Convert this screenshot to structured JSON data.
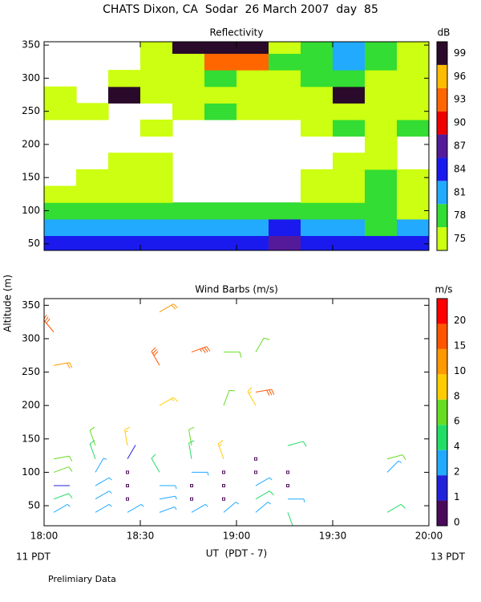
{
  "page": {
    "title": "CHATS Dixon, CA  Sodar  26 March 2007  day  85",
    "ylabel": "Altitude (m)",
    "xlabel": "UT  (PDT - 7)",
    "left_note": "11 PDT",
    "right_note": "13 PDT",
    "footnote": "Prelimiary Data"
  },
  "chart_data": [
    {
      "type": "heatmap",
      "title": "Reflectivity",
      "x": [
        5,
        15,
        25,
        35,
        45,
        55,
        65,
        75,
        85,
        95,
        105,
        115
      ],
      "y": [
        50,
        75,
        100,
        125,
        150,
        175,
        200,
        225,
        250,
        275,
        300,
        325,
        350
      ],
      "z": [
        [
          84,
          84,
          84,
          84,
          84,
          84,
          84,
          87,
          84,
          84,
          84,
          84
        ],
        [
          81,
          81,
          81,
          81,
          81,
          81,
          81,
          84,
          81,
          81,
          78,
          81
        ],
        [
          78,
          78,
          78,
          78,
          78,
          78,
          78,
          78,
          78,
          78,
          78,
          75
        ],
        [
          75,
          75,
          75,
          75,
          null,
          null,
          null,
          null,
          75,
          75,
          78,
          75
        ],
        [
          null,
          75,
          75,
          75,
          null,
          null,
          null,
          null,
          75,
          75,
          78,
          75
        ],
        [
          null,
          null,
          75,
          75,
          null,
          null,
          null,
          null,
          null,
          75,
          75,
          null
        ],
        [
          null,
          null,
          null,
          null,
          null,
          null,
          null,
          null,
          null,
          null,
          75,
          null
        ],
        [
          null,
          null,
          null,
          75,
          null,
          null,
          null,
          null,
          75,
          78,
          75,
          78
        ],
        [
          75,
          75,
          null,
          null,
          75,
          78,
          75,
          75,
          75,
          75,
          75,
          75
        ],
        [
          75,
          null,
          99,
          75,
          75,
          75,
          75,
          75,
          75,
          99,
          75,
          75
        ],
        [
          null,
          null,
          75,
          75,
          75,
          78,
          75,
          75,
          78,
          78,
          75,
          75
        ],
        [
          null,
          null,
          null,
          75,
          75,
          93,
          93,
          78,
          78,
          81,
          78,
          75
        ],
        [
          null,
          null,
          null,
          75,
          99,
          99,
          99,
          75,
          78,
          81,
          78,
          75
        ]
      ],
      "xlim": [
        0,
        120
      ],
      "ylim": [
        40,
        355
      ],
      "xticks": [
        0,
        30,
        60,
        90,
        120
      ],
      "yticks": [
        50,
        100,
        150,
        200,
        250,
        300,
        350
      ],
      "colorbar": {
        "label": "dB",
        "label_position": "center",
        "levels": [
          75,
          78,
          81,
          84,
          87,
          90,
          93,
          96,
          99
        ],
        "colors": [
          "#ccff11",
          "#33dd33",
          "#22aaff",
          "#1a1aee",
          "#551a99",
          "#ee0000",
          "#ff6600",
          "#ffbb00",
          "#2a0a2a"
        ]
      }
    },
    {
      "type": "barbs",
      "title": "Wind Barbs (m/s)",
      "x": [
        3,
        16,
        26,
        36,
        46,
        56,
        66,
        76,
        107,
        3,
        16,
        26,
        36,
        46,
        56,
        66,
        76,
        3,
        16,
        26,
        36,
        46,
        56,
        66,
        76,
        3,
        16,
        26,
        36,
        46,
        56,
        66,
        76,
        107,
        3,
        16,
        26,
        46,
        56,
        66,
        107,
        16,
        26,
        46,
        76,
        36,
        56,
        66,
        66,
        3,
        36,
        46,
        56,
        66,
        3,
        36
      ],
      "y": [
        40,
        40,
        40,
        40,
        40,
        40,
        40,
        40,
        40,
        60,
        60,
        60,
        60,
        60,
        60,
        60,
        60,
        80,
        80,
        80,
        80,
        80,
        80,
        80,
        80,
        100,
        100,
        100,
        100,
        100,
        100,
        100,
        100,
        100,
        120,
        120,
        120,
        120,
        120,
        120,
        120,
        140,
        140,
        140,
        140,
        200,
        200,
        200,
        220,
        260,
        260,
        280,
        280,
        280,
        310,
        340
      ],
      "speed": [
        3,
        3,
        3,
        3,
        3,
        3,
        3,
        5,
        5,
        5,
        3,
        0,
        3,
        0,
        0,
        5,
        3,
        1.5,
        3,
        0,
        3,
        0,
        0,
        3,
        0,
        7,
        3,
        0,
        5,
        3,
        0,
        0,
        0,
        3,
        7,
        5,
        1.5,
        5,
        9,
        0,
        7,
        7,
        9,
        7,
        5,
        9,
        7,
        9,
        16,
        12,
        16,
        18,
        6,
        6,
        16,
        11
      ],
      "direction": [
        60,
        60,
        60,
        70,
        60,
        50,
        50,
        160,
        60,
        70,
        60,
        0,
        80,
        0,
        0,
        60,
        90,
        90,
        60,
        0,
        90,
        0,
        0,
        60,
        0,
        70,
        30,
        0,
        330,
        90,
        0,
        0,
        0,
        45,
        80,
        340,
        30,
        350,
        340,
        0,
        75,
        340,
        350,
        350,
        75,
        60,
        20,
        330,
        80,
        80,
        330,
        70,
        90,
        30,
        320,
        60
      ],
      "xlim": [
        0,
        120
      ],
      "ylim": [
        20,
        360
      ],
      "xticks": [
        {
          "value": 0,
          "label": "18:00"
        },
        {
          "value": 30,
          "label": "18:30"
        },
        {
          "value": 60,
          "label": "19:00"
        },
        {
          "value": 90,
          "label": "19:30"
        },
        {
          "value": 120,
          "label": "20:00"
        }
      ],
      "yticks": [
        50,
        100,
        150,
        200,
        250,
        300,
        350
      ],
      "colorbar": {
        "label": "m/s",
        "label_position": "edge",
        "levels": [
          0,
          1,
          2,
          4,
          6,
          8,
          10,
          15,
          20
        ],
        "colors": [
          "#4a0a5a",
          "#2222dd",
          "#22aaff",
          "#22dd66",
          "#66dd22",
          "#ffcc00",
          "#ff9900",
          "#ff5500",
          "#ff0000"
        ]
      }
    }
  ]
}
